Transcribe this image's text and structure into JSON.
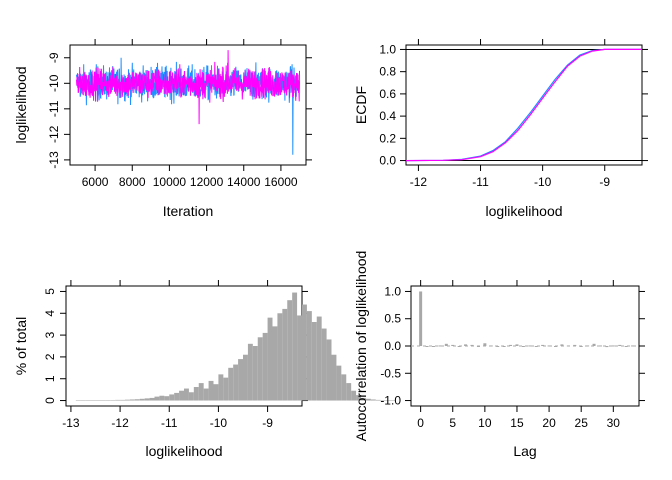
{
  "chart_data": [
    {
      "type": "line",
      "name": "trace",
      "xlabel": "Iteration",
      "ylabel": "loglikelihood",
      "xlim": [
        4650,
        17350
      ],
      "ylim": [
        -13.2,
        -8.5
      ],
      "xticks": [
        6000,
        8000,
        10000,
        12000,
        14000,
        16000
      ],
      "xtick_labels": [
        "6000",
        "8000",
        "10000",
        "12000",
        "14000",
        "16000"
      ],
      "yticks": [
        -13,
        -12,
        -11,
        -10,
        -9
      ],
      "ytick_labels": [
        "-13",
        "-12",
        "-11",
        "-10",
        "-9"
      ],
      "iteration_range": [
        5000,
        17000
      ],
      "center": -10.0,
      "series": [
        {
          "color": "#1e90ff",
          "typical_range": [
            -11.5,
            -9.0
          ],
          "min": -12.8,
          "max": -9.0
        },
        {
          "color": "#ff00ff",
          "typical_range": [
            -11.3,
            -9.1
          ],
          "min": -11.6,
          "max": -8.7
        }
      ],
      "grid": false
    },
    {
      "type": "line",
      "name": "ecdf",
      "xlabel": "loglikelihood",
      "ylabel": "ECDF",
      "xlim": [
        -12.2,
        -8.4
      ],
      "ylim": [
        -0.04,
        1.04
      ],
      "xticks": [
        -12,
        -11,
        -10,
        -9
      ],
      "xtick_labels": [
        "-12",
        "-11",
        "-10",
        "-9"
      ],
      "yticks": [
        0.0,
        0.2,
        0.4,
        0.6,
        0.8,
        1.0
      ],
      "ytick_labels": [
        "0.0",
        "0.2",
        "0.4",
        "0.6",
        "0.8",
        "1.0"
      ],
      "reference_lines_y": [
        0,
        1
      ],
      "series": [
        {
          "color": "#1e90ff",
          "x": [
            -12.2,
            -11.6,
            -11.3,
            -11.0,
            -10.8,
            -10.6,
            -10.4,
            -10.2,
            -10.0,
            -9.8,
            -9.6,
            -9.4,
            -9.2,
            -9.0,
            -8.8,
            -8.4
          ],
          "y": [
            0.0,
            0.002,
            0.01,
            0.04,
            0.09,
            0.17,
            0.29,
            0.43,
            0.58,
            0.73,
            0.86,
            0.95,
            0.99,
            1.0,
            1.0,
            1.0
          ]
        },
        {
          "color": "#ff00ff",
          "x": [
            -12.2,
            -11.6,
            -11.3,
            -11.0,
            -10.8,
            -10.6,
            -10.4,
            -10.2,
            -10.0,
            -9.8,
            -9.6,
            -9.4,
            -9.2,
            -9.0,
            -8.8,
            -8.4
          ],
          "y": [
            0.0,
            0.002,
            0.008,
            0.035,
            0.08,
            0.16,
            0.27,
            0.41,
            0.56,
            0.71,
            0.85,
            0.94,
            0.985,
            1.0,
            1.0,
            1.0
          ]
        }
      ],
      "grid": false
    },
    {
      "type": "bar",
      "name": "histogram",
      "xlabel": "loglikelihood",
      "ylabel": "% of total",
      "xlim": [
        -13.1,
        -8.3
      ],
      "ylim": [
        -0.25,
        5.25
      ],
      "xticks": [
        -13,
        -12,
        -11,
        -10,
        -9
      ],
      "xtick_labels": [
        "-13",
        "-12",
        "-11",
        "-10",
        "-9"
      ],
      "yticks": [
        0,
        1,
        2,
        3,
        4,
        5
      ],
      "ytick_labels": [
        "0",
        "1",
        "2",
        "3",
        "4",
        "5"
      ],
      "bin_start": -12.9,
      "bin_width": 0.1,
      "values": [
        0.02,
        0.01,
        0.01,
        0.01,
        0.02,
        0.01,
        0.02,
        0.02,
        0.03,
        0.03,
        0.04,
        0.05,
        0.06,
        0.08,
        0.1,
        0.12,
        0.18,
        0.22,
        0.2,
        0.28,
        0.35,
        0.45,
        0.55,
        0.38,
        0.62,
        0.8,
        0.55,
        0.9,
        0.75,
        1.2,
        1.05,
        1.5,
        1.65,
        1.9,
        2.1,
        2.6,
        2.5,
        2.9,
        3.1,
        3.8,
        3.4,
        4.0,
        4.2,
        4.6,
        4.95,
        3.9,
        4.4,
        4.1,
        3.6,
        3.85,
        3.3,
        2.8,
        2.1,
        1.6,
        1.2,
        0.8,
        0.45,
        0.25,
        0.12,
        0.08,
        0.05,
        0.03,
        0.02,
        0.02,
        0.01
      ],
      "grid": false
    },
    {
      "type": "bar",
      "name": "autocorrelation",
      "xlabel": "Lag",
      "ylabel": "Autocorrelation of loglikelihood",
      "xlim": [
        -1.5,
        34.0
      ],
      "ylim": [
        -1.1,
        1.1
      ],
      "xticks": [
        0,
        5,
        10,
        15,
        20,
        25,
        30
      ],
      "xtick_labels": [
        "0",
        "5",
        "10",
        "15",
        "20",
        "25",
        "30"
      ],
      "yticks": [
        -1.0,
        -0.5,
        0.0,
        0.5,
        1.0
      ],
      "ytick_labels": [
        "-1.0",
        "-0.5",
        "0.0",
        "0.5",
        "1.0"
      ],
      "lags": [
        0,
        1,
        2,
        3,
        4,
        5,
        6,
        7,
        8,
        9,
        10,
        11,
        12,
        13,
        14,
        15,
        16,
        17,
        18,
        19,
        20,
        21,
        22,
        23,
        24,
        25,
        26,
        27,
        28,
        29,
        30,
        31,
        32,
        33
      ],
      "values": [
        1.0,
        -0.01,
        0.0,
        0.01,
        0.04,
        0.02,
        0.0,
        0.03,
        0.02,
        0.0,
        0.05,
        0.01,
        0.0,
        -0.01,
        0.02,
        0.03,
        0.0,
        0.01,
        0.0,
        0.02,
        0.01,
        0.0,
        0.03,
        0.01,
        0.02,
        0.0,
        0.01,
        0.04,
        0.01,
        -0.02,
        0.01,
        0.02,
        0.0,
        0.01
      ],
      "grid": false
    }
  ]
}
